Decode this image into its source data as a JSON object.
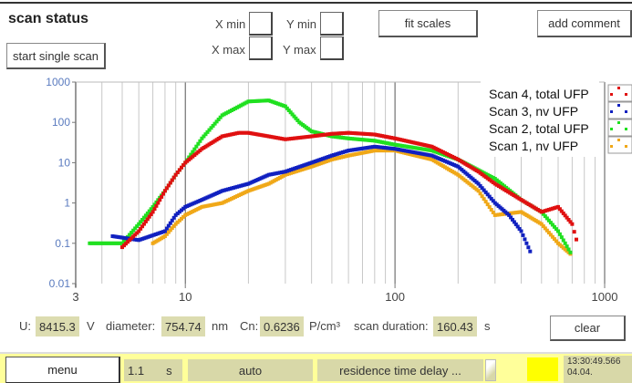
{
  "header": {
    "title": "scan status",
    "start_button": "start single scan",
    "fit_scales_button": "fit scales",
    "add_comment_button": "add comment",
    "x_min_label": "X min",
    "x_max_label": "X max",
    "y_min_label": "Y min",
    "y_max_label": "Y max",
    "x_min_value": "",
    "x_max_value": "",
    "y_min_value": "",
    "y_max_value": ""
  },
  "chart_data": {
    "type": "scatter",
    "title": "",
    "xlabel": "",
    "ylabel": "",
    "xscale": "log",
    "yscale": "log",
    "xlim": [
      3,
      1000
    ],
    "ylim": [
      0.01,
      1000
    ],
    "x_ticks": [
      "3",
      "10",
      "100",
      "1000"
    ],
    "y_ticks": [
      "1000",
      "100",
      "10",
      "1",
      "0.1",
      "0.01"
    ],
    "grid": "vertical minor gridlines",
    "legend_position": "upper right",
    "series": [
      {
        "name": "Scan 4, total UFP",
        "color": "#e01010",
        "x": [
          5,
          6,
          7,
          8,
          9,
          10,
          12,
          15,
          18,
          20,
          25,
          30,
          40,
          50,
          60,
          80,
          100,
          150,
          200,
          250,
          300,
          400,
          500,
          600,
          700,
          750
        ],
        "y": [
          0.08,
          0.2,
          0.6,
          2,
          5,
          10,
          22,
          45,
          55,
          55,
          45,
          38,
          45,
          52,
          55,
          50,
          40,
          25,
          12,
          6,
          3,
          1.2,
          0.6,
          0.8,
          0.3,
          0.08
        ]
      },
      {
        "name": "Scan 3, nv UFP",
        "color": "#1020c0",
        "x": [
          4.5,
          6,
          8,
          9,
          10,
          12,
          15,
          20,
          25,
          30,
          40,
          50,
          60,
          80,
          100,
          150,
          200,
          250,
          300,
          350,
          400,
          450
        ],
        "y": [
          0.15,
          0.12,
          0.2,
          0.5,
          0.8,
          1.2,
          2,
          3,
          5,
          6,
          10,
          15,
          20,
          25,
          22,
          15,
          8,
          3,
          1,
          0.5,
          0.2,
          0.05
        ]
      },
      {
        "name": "Scan 2, total UFP",
        "color": "#20e020",
        "x": [
          3.5,
          5,
          6,
          7,
          8,
          9,
          10,
          12,
          15,
          20,
          25,
          30,
          35,
          40,
          50,
          60,
          80,
          100,
          150,
          200,
          300,
          400,
          500,
          600,
          700
        ],
        "y": [
          0.1,
          0.1,
          0.3,
          0.8,
          2,
          5,
          10,
          40,
          150,
          330,
          350,
          250,
          100,
          60,
          45,
          40,
          35,
          28,
          20,
          12,
          4,
          1.2,
          0.6,
          0.2,
          0.05
        ]
      },
      {
        "name": "Scan 1, nv UFP",
        "color": "#f0a818",
        "x": [
          7,
          8,
          9,
          10,
          12,
          15,
          20,
          25,
          30,
          40,
          50,
          60,
          80,
          100,
          150,
          200,
          250,
          300,
          400,
          500,
          600,
          700
        ],
        "y": [
          0.1,
          0.15,
          0.3,
          0.5,
          0.8,
          1,
          2,
          3,
          5,
          8,
          12,
          15,
          20,
          20,
          12,
          5,
          2,
          0.5,
          0.6,
          0.3,
          0.1,
          0.05
        ]
      }
    ]
  },
  "info": {
    "u_label": "U:",
    "u_value": "8415.3",
    "u_unit": "V",
    "diameter_label": "diameter:",
    "diameter_value": "754.74",
    "diameter_unit": "nm",
    "cn_label": "Cn:",
    "cn_value": "0.6236",
    "cn_unit": "P/cm³",
    "duration_label": "scan duration:",
    "duration_value": "160.43",
    "duration_unit": "s",
    "clear_button": "clear"
  },
  "statusbar": {
    "menu_button": "menu",
    "interval_value": "1.1",
    "interval_unit": "s",
    "mode": "auto",
    "residence": "residence time delay ...",
    "indicator_color": "#ffff00",
    "time": "13:30:49.566",
    "date": "04.04."
  }
}
